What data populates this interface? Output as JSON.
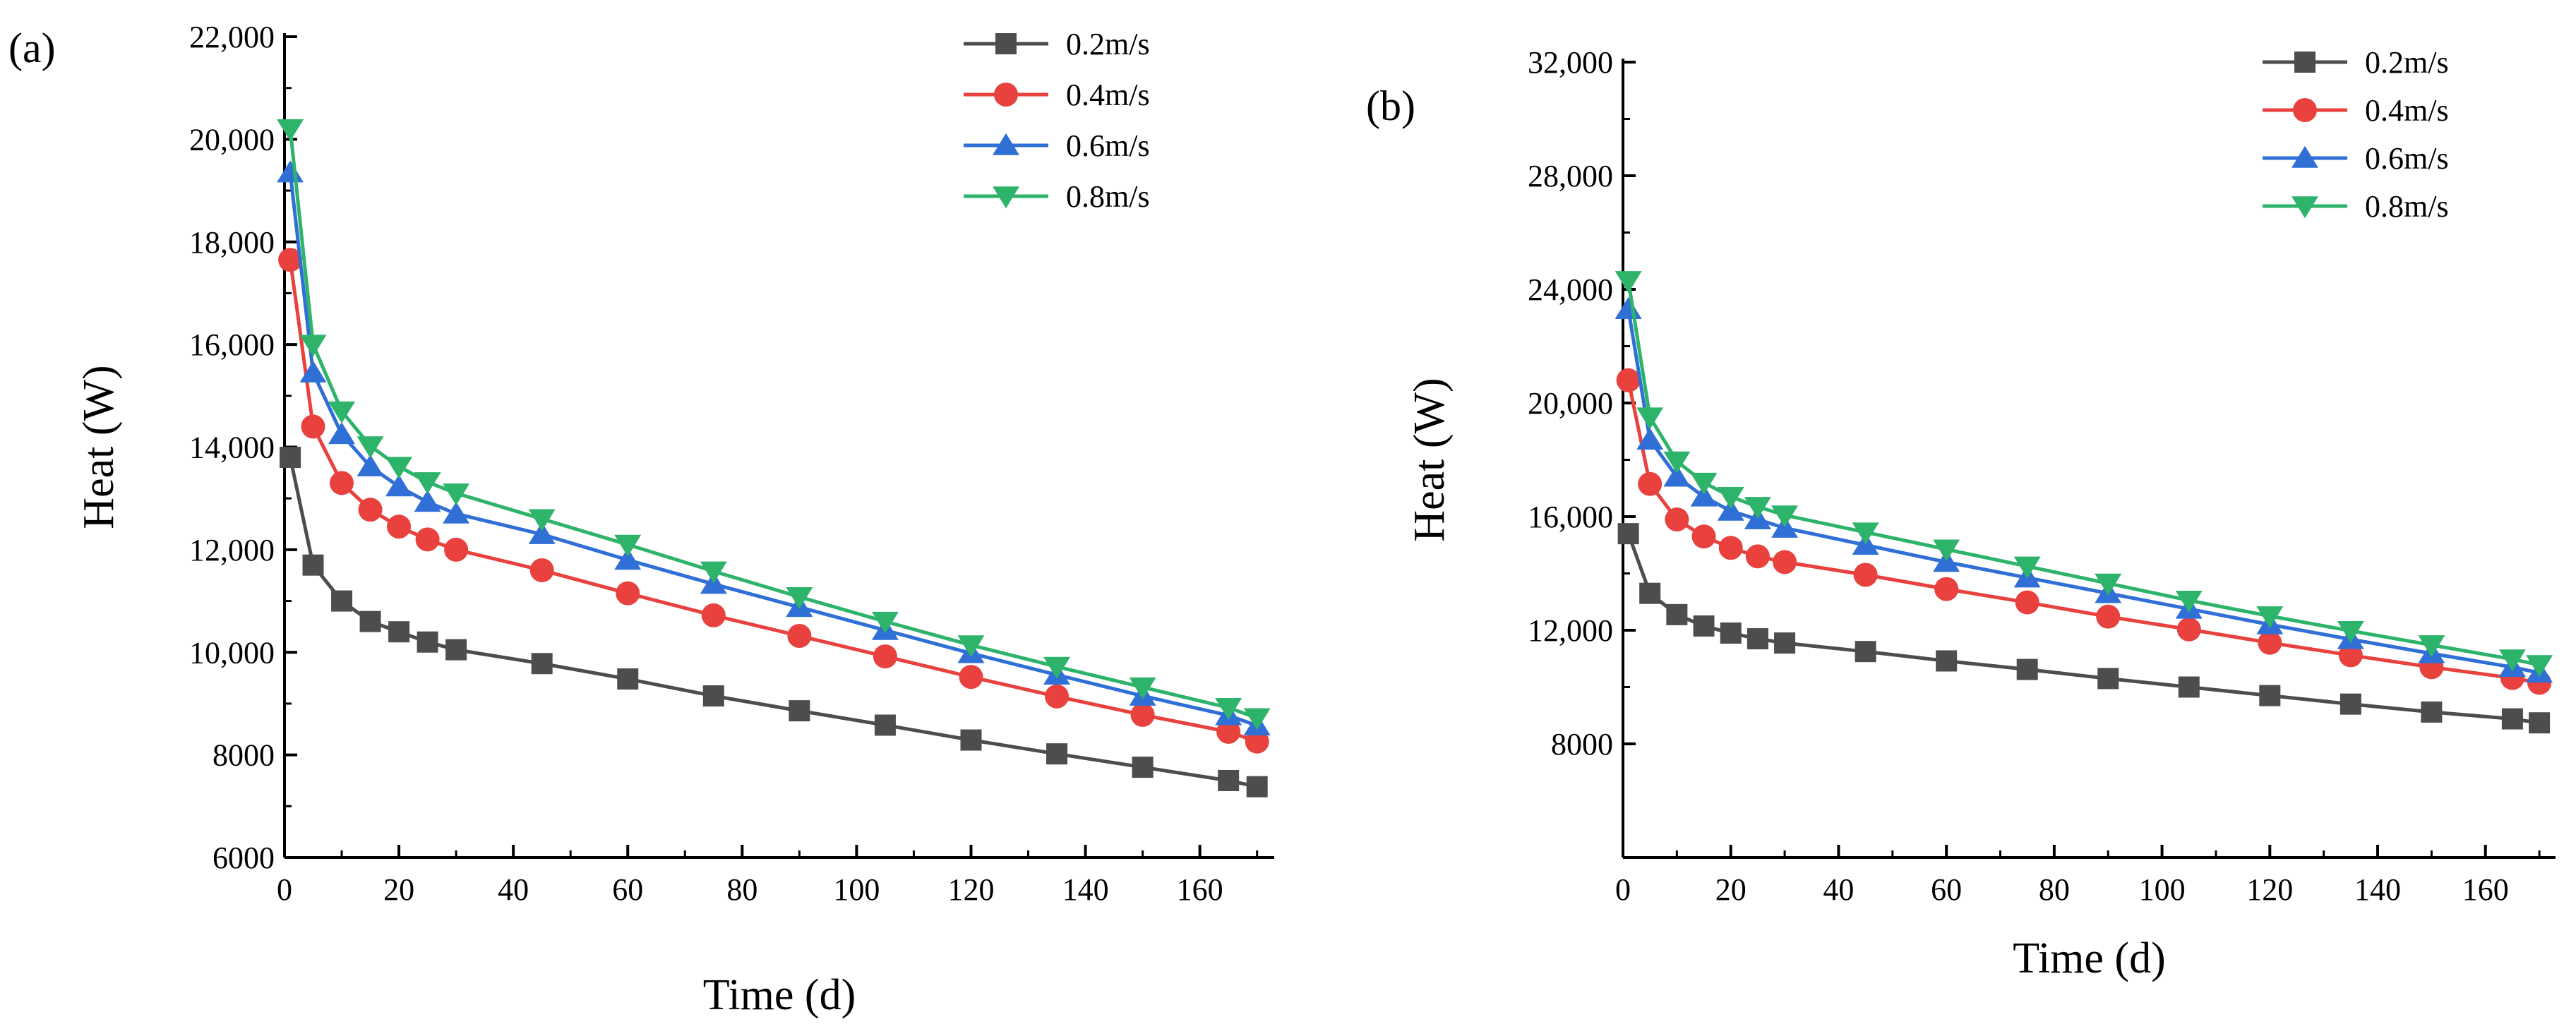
{
  "chart_data": [
    {
      "type": "line",
      "panel_label": "(a)",
      "xlabel": "Time (d)",
      "ylabel": "Heat (W)",
      "xlim": [
        0,
        173
      ],
      "ylim": [
        6000,
        22000
      ],
      "xticks": [
        0,
        20,
        40,
        60,
        80,
        100,
        120,
        140,
        160
      ],
      "xtick_labels": [
        "0",
        "20",
        "40",
        "60",
        "80",
        "100",
        "120",
        "140",
        "160"
      ],
      "yticks": [
        6000,
        8000,
        10000,
        12000,
        14000,
        16000,
        18000,
        20000,
        22000
      ],
      "ytick_labels": [
        "6000",
        "8000",
        "10,000",
        "12,000",
        "14,000",
        "16,000",
        "18,000",
        "20,000",
        "22,000"
      ],
      "grid": false,
      "legend_position": "top-right",
      "x": [
        1,
        5,
        10,
        15,
        20,
        25,
        30,
        45,
        60,
        75,
        90,
        105,
        120,
        135,
        150,
        165,
        170
      ],
      "series": [
        {
          "name": "0.2m/s",
          "color": "#4d4d4d",
          "marker": "square",
          "values": [
            13800,
            11700,
            11000,
            10600,
            10400,
            10200,
            10050,
            9780,
            9480,
            9150,
            8860,
            8580,
            8290,
            8020,
            7760,
            7500,
            7380
          ]
        },
        {
          "name": "0.4m/s",
          "color": "#e8413e",
          "marker": "circle",
          "values": [
            17650,
            14400,
            13300,
            12780,
            12450,
            12200,
            12000,
            11600,
            11150,
            10720,
            10320,
            9920,
            9520,
            9140,
            8780,
            8450,
            8260
          ]
        },
        {
          "name": "0.6m/s",
          "color": "#2f6fd6",
          "marker": "triangle-up",
          "values": [
            19350,
            15450,
            14250,
            13620,
            13230,
            12930,
            12700,
            12300,
            11800,
            11330,
            10880,
            10430,
            9980,
            9560,
            9150,
            8770,
            8570
          ]
        },
        {
          "name": "0.8m/s",
          "color": "#2db36a",
          "marker": "triangle-down",
          "values": [
            20200,
            16000,
            14700,
            14020,
            13620,
            13320,
            13100,
            12600,
            12100,
            11580,
            11080,
            10600,
            10140,
            9720,
            9320,
            8920,
            8720
          ]
        }
      ]
    },
    {
      "type": "line",
      "panel_label": "(b)",
      "xlabel": "Time (d)",
      "ylabel": "Heat (W)",
      "xlim": [
        0,
        173
      ],
      "ylim": [
        4000,
        32000
      ],
      "xticks": [
        0,
        20,
        40,
        60,
        80,
        100,
        120,
        140,
        160
      ],
      "xtick_labels": [
        "0",
        "20",
        "40",
        "60",
        "80",
        "100",
        "120",
        "140",
        "160"
      ],
      "yticks": [
        8000,
        12000,
        16000,
        20000,
        24000,
        28000,
        32000
      ],
      "ytick_labels": [
        "8000",
        "12,000",
        "16,000",
        "20,000",
        "24,000",
        "28,000",
        "32,000"
      ],
      "grid": false,
      "legend_position": "top-right",
      "x": [
        1,
        5,
        10,
        15,
        20,
        25,
        30,
        45,
        60,
        75,
        90,
        105,
        120,
        135,
        150,
        165,
        170
      ],
      "series": [
        {
          "name": "0.2m/s",
          "color": "#4d4d4d",
          "marker": "square",
          "values": [
            15400,
            13300,
            12550,
            12150,
            11900,
            11700,
            11550,
            11250,
            10920,
            10620,
            10300,
            10000,
            9700,
            9400,
            9120,
            8880,
            8740
          ]
        },
        {
          "name": "0.4m/s",
          "color": "#e8413e",
          "marker": "circle",
          "values": [
            20800,
            17150,
            15900,
            15300,
            14900,
            14600,
            14400,
            13950,
            13450,
            12980,
            12480,
            12030,
            11560,
            11120,
            10700,
            10320,
            10150
          ]
        },
        {
          "name": "0.6m/s",
          "color": "#2f6fd6",
          "marker": "triangle-up",
          "values": [
            23300,
            18700,
            17400,
            16700,
            16200,
            15900,
            15600,
            15000,
            14400,
            13850,
            13300,
            12750,
            12200,
            11680,
            11180,
            10700,
            10500
          ]
        },
        {
          "name": "0.8m/s",
          "color": "#2db36a",
          "marker": "triangle-down",
          "values": [
            24300,
            19500,
            17950,
            17200,
            16700,
            16350,
            16050,
            15450,
            14850,
            14250,
            13650,
            13050,
            12500,
            11980,
            11480,
            10980,
            10780
          ]
        }
      ]
    }
  ]
}
